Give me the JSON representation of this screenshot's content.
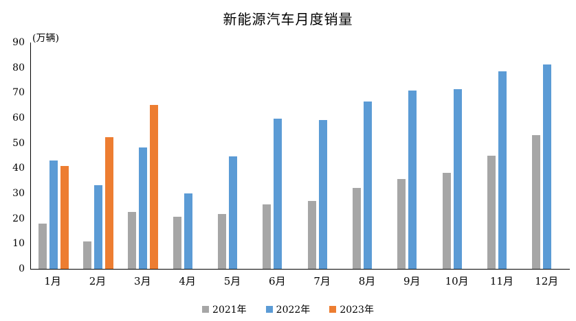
{
  "chart_data": {
    "type": "bar",
    "title": "新能源汽车月度销量",
    "unit_label": "(万辆)",
    "categories": [
      "1月",
      "2月",
      "3月",
      "4月",
      "5月",
      "6月",
      "7月",
      "8月",
      "9月",
      "10月",
      "11月",
      "12月"
    ],
    "series": [
      {
        "name": "2021年",
        "color": "#A6A6A6",
        "values": [
          17.9,
          11.0,
          22.6,
          20.6,
          21.7,
          25.6,
          27.1,
          32.1,
          35.7,
          38.3,
          45.0,
          53.1
        ]
      },
      {
        "name": "2022年",
        "color": "#5B9BD5",
        "values": [
          43.1,
          33.4,
          48.4,
          29.9,
          44.7,
          59.6,
          59.3,
          66.6,
          70.8,
          71.4,
          78.6,
          81.4
        ]
      },
      {
        "name": "2023年",
        "color": "#ED7D31",
        "values": [
          40.8,
          52.5,
          65.3,
          null,
          null,
          null,
          null,
          null,
          null,
          null,
          null,
          null
        ]
      }
    ],
    "ylim": [
      0,
      90
    ],
    "ytick_step": 10,
    "grid": false,
    "legend_position": "bottom",
    "axis_color": "#000000"
  }
}
